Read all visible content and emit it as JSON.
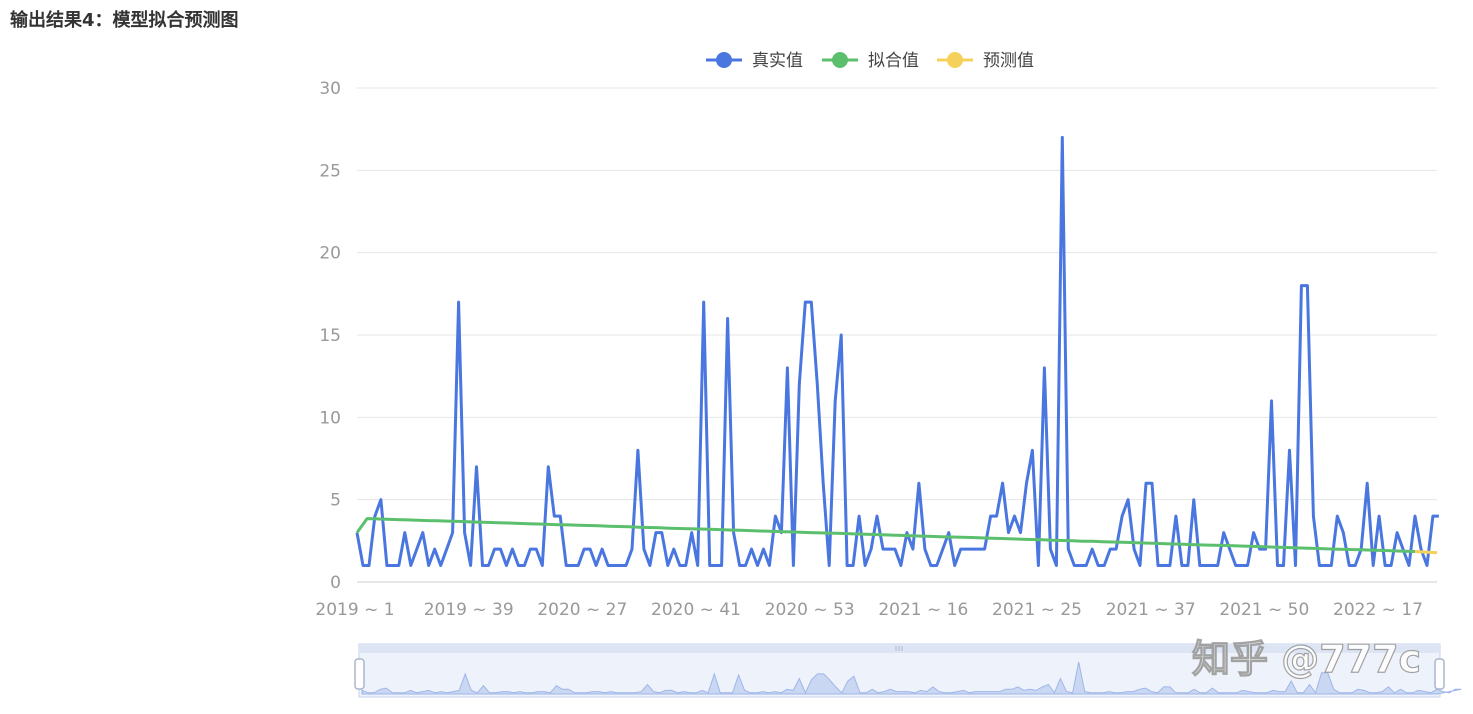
{
  "page": {
    "heading": "输出结果4：模型拟合预测图"
  },
  "watermark": "知乎 @777c",
  "colors": {
    "actual": "#4a76e0",
    "fitted": "#5bbf6e",
    "forecast": "#f5d05a",
    "grid": "#e6e6e6",
    "slider_fill": "#e6eefb",
    "slider_border": "#c6d3ec"
  },
  "chart_data": {
    "type": "line",
    "title": "",
    "xlabel": "",
    "ylabel": "",
    "ylim": [
      0,
      30
    ],
    "yticks": [
      0,
      5,
      10,
      15,
      20,
      25,
      30
    ],
    "xtick_labels": [
      "2019 ~ 1",
      "2019 ~ 39",
      "2020 ~ 27",
      "2020 ~ 41",
      "2020 ~ 53",
      "2021 ~ 16",
      "2021 ~ 25",
      "2021 ~ 37",
      "2021 ~ 50",
      "2022 ~ 17"
    ],
    "grid": true,
    "legend_position": "top-center",
    "n_points": 178,
    "series": [
      {
        "name": "真实值",
        "values": [
          3,
          1,
          1,
          4,
          5,
          1,
          1,
          1,
          3,
          1,
          2,
          3,
          1,
          2,
          1,
          2,
          3,
          17,
          3,
          1,
          7,
          1,
          1,
          2,
          2,
          1,
          2,
          1,
          1,
          2,
          2,
          1,
          7,
          4,
          4,
          1,
          1,
          1,
          2,
          2,
          1,
          2,
          1,
          1,
          1,
          1,
          2,
          8,
          2,
          1,
          3,
          3,
          1,
          2,
          1,
          1,
          3,
          1,
          17,
          1,
          1,
          1,
          16,
          3,
          1,
          1,
          2,
          1,
          2,
          1,
          4,
          3,
          13,
          1,
          12,
          17,
          17,
          12,
          6,
          1,
          11,
          15,
          1,
          1,
          4,
          1,
          2,
          4,
          2,
          2,
          2,
          1,
          3,
          2,
          6,
          2,
          1,
          1,
          2,
          3,
          1,
          2,
          2,
          2,
          2,
          2,
          4,
          4,
          6,
          3,
          4,
          3,
          6,
          8,
          1,
          13,
          2,
          1,
          27,
          2,
          1,
          1,
          1,
          2,
          1,
          1,
          2,
          2,
          4,
          5,
          2,
          1,
          6,
          6,
          1,
          1,
          1,
          4,
          1,
          1,
          5,
          1,
          1,
          1,
          1,
          3,
          2,
          1,
          1,
          1,
          3,
          2,
          2,
          11,
          1,
          1,
          8,
          1,
          18,
          18,
          4,
          1,
          1,
          1,
          4,
          3,
          1,
          1,
          2,
          6,
          1,
          4,
          1,
          1,
          3,
          2,
          1,
          4,
          2,
          1,
          4,
          4
        ]
      },
      {
        "name": "拟合值",
        "values": [
          3,
          3.85,
          3.83,
          3.81,
          3.79,
          3.77,
          3.75,
          3.73,
          3.72,
          3.7,
          3.68,
          3.66,
          3.64,
          3.62,
          3.6,
          3.58,
          3.56,
          3.54,
          3.52,
          3.5,
          3.48,
          3.47,
          3.45,
          3.43,
          3.41,
          3.39,
          3.37,
          3.35,
          3.33,
          3.31,
          3.29,
          3.27,
          3.25,
          3.23,
          3.22,
          3.2,
          3.18,
          3.16,
          3.14,
          3.12,
          3.1,
          3.08,
          3.06,
          3.04,
          3.02,
          3.0,
          2.98,
          2.97,
          2.95,
          2.93,
          2.91,
          2.89,
          2.87,
          2.85,
          2.83,
          2.81,
          2.79,
          2.77,
          2.75,
          2.73,
          2.72,
          2.7,
          2.68,
          2.66,
          2.64,
          2.62,
          2.6,
          2.58,
          2.56,
          2.54,
          2.52,
          2.5,
          2.48,
          2.47,
          2.45,
          2.43,
          2.41,
          2.39,
          2.37,
          2.35,
          2.33,
          2.31,
          2.29,
          2.27,
          2.25,
          2.23,
          2.22,
          2.2,
          2.18,
          2.16,
          2.14,
          2.12,
          2.1,
          2.08,
          2.06,
          2.04,
          2.02,
          2.0,
          1.98,
          1.97,
          1.95,
          1.93,
          1.91,
          1.89,
          1.87,
          1.85
        ]
      },
      {
        "name": "预测值",
        "values": [
          1.85,
          1.78
        ]
      }
    ]
  }
}
